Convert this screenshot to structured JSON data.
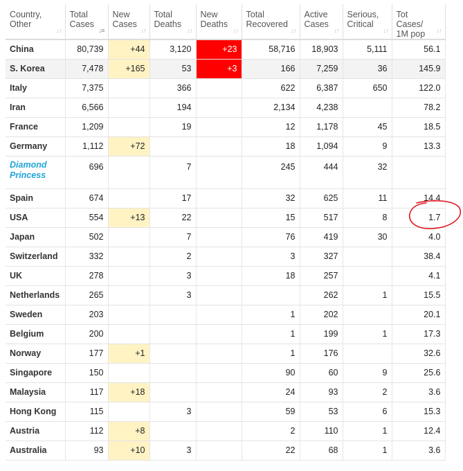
{
  "table": {
    "columns": [
      {
        "label": "Country,\nOther",
        "sort_active": false
      },
      {
        "label": "Total\nCases",
        "sort_active": true
      },
      {
        "label": "New\nCases",
        "sort_active": false
      },
      {
        "label": "Total\nDeaths",
        "sort_active": false
      },
      {
        "label": "New\nDeaths",
        "sort_active": false
      },
      {
        "label": "Total\nRecovered",
        "sort_active": false
      },
      {
        "label": "Active\nCases",
        "sort_active": false
      },
      {
        "label": "Serious,\nCritical",
        "sort_active": false
      },
      {
        "label": "Tot Cases/\n1M pop",
        "sort_active": false
      }
    ],
    "sort_icon": "sort-arrows-icon",
    "rows": [
      {
        "country": "China",
        "total_cases": "80,739",
        "new_cases": "+44",
        "total_deaths": "3,120",
        "new_deaths": "+23",
        "total_recovered": "58,716",
        "active_cases": "18,903",
        "serious": "5,111",
        "per_million": "56.1",
        "link": false,
        "highlight": false
      },
      {
        "country": "S. Korea",
        "total_cases": "7,478",
        "new_cases": "+165",
        "total_deaths": "53",
        "new_deaths": "+3",
        "total_recovered": "166",
        "active_cases": "7,259",
        "serious": "36",
        "per_million": "145.9",
        "link": false,
        "highlight": true
      },
      {
        "country": "Italy",
        "total_cases": "7,375",
        "new_cases": "",
        "total_deaths": "366",
        "new_deaths": "",
        "total_recovered": "622",
        "active_cases": "6,387",
        "serious": "650",
        "per_million": "122.0",
        "link": false,
        "highlight": false
      },
      {
        "country": "Iran",
        "total_cases": "6,566",
        "new_cases": "",
        "total_deaths": "194",
        "new_deaths": "",
        "total_recovered": "2,134",
        "active_cases": "4,238",
        "serious": "",
        "per_million": "78.2",
        "link": false,
        "highlight": false
      },
      {
        "country": "France",
        "total_cases": "1,209",
        "new_cases": "",
        "total_deaths": "19",
        "new_deaths": "",
        "total_recovered": "12",
        "active_cases": "1,178",
        "serious": "45",
        "per_million": "18.5",
        "link": false,
        "highlight": false
      },
      {
        "country": "Germany",
        "total_cases": "1,112",
        "new_cases": "+72",
        "total_deaths": "",
        "new_deaths": "",
        "total_recovered": "18",
        "active_cases": "1,094",
        "serious": "9",
        "per_million": "13.3",
        "link": false,
        "highlight": false
      },
      {
        "country": "Diamond Princess",
        "total_cases": "696",
        "new_cases": "",
        "total_deaths": "7",
        "new_deaths": "",
        "total_recovered": "245",
        "active_cases": "444",
        "serious": "32",
        "per_million": "",
        "link": true,
        "highlight": false
      },
      {
        "country": "Spain",
        "total_cases": "674",
        "new_cases": "",
        "total_deaths": "17",
        "new_deaths": "",
        "total_recovered": "32",
        "active_cases": "625",
        "serious": "11",
        "per_million": "14.4",
        "link": false,
        "highlight": false
      },
      {
        "country": "USA",
        "total_cases": "554",
        "new_cases": "+13",
        "total_deaths": "22",
        "new_deaths": "",
        "total_recovered": "15",
        "active_cases": "517",
        "serious": "8",
        "per_million": "1.7",
        "link": false,
        "highlight": false
      },
      {
        "country": "Japan",
        "total_cases": "502",
        "new_cases": "",
        "total_deaths": "7",
        "new_deaths": "",
        "total_recovered": "76",
        "active_cases": "419",
        "serious": "30",
        "per_million": "4.0",
        "link": false,
        "highlight": false
      },
      {
        "country": "Switzerland",
        "total_cases": "332",
        "new_cases": "",
        "total_deaths": "2",
        "new_deaths": "",
        "total_recovered": "3",
        "active_cases": "327",
        "serious": "",
        "per_million": "38.4",
        "link": false,
        "highlight": false
      },
      {
        "country": "UK",
        "total_cases": "278",
        "new_cases": "",
        "total_deaths": "3",
        "new_deaths": "",
        "total_recovered": "18",
        "active_cases": "257",
        "serious": "",
        "per_million": "4.1",
        "link": false,
        "highlight": false
      },
      {
        "country": "Netherlands",
        "total_cases": "265",
        "new_cases": "",
        "total_deaths": "3",
        "new_deaths": "",
        "total_recovered": "",
        "active_cases": "262",
        "serious": "1",
        "per_million": "15.5",
        "link": false,
        "highlight": false
      },
      {
        "country": "Sweden",
        "total_cases": "203",
        "new_cases": "",
        "total_deaths": "",
        "new_deaths": "",
        "total_recovered": "1",
        "active_cases": "202",
        "serious": "",
        "per_million": "20.1",
        "link": false,
        "highlight": false
      },
      {
        "country": "Belgium",
        "total_cases": "200",
        "new_cases": "",
        "total_deaths": "",
        "new_deaths": "",
        "total_recovered": "1",
        "active_cases": "199",
        "serious": "1",
        "per_million": "17.3",
        "link": false,
        "highlight": false
      },
      {
        "country": "Norway",
        "total_cases": "177",
        "new_cases": "+1",
        "total_deaths": "",
        "new_deaths": "",
        "total_recovered": "1",
        "active_cases": "176",
        "serious": "",
        "per_million": "32.6",
        "link": false,
        "highlight": false
      },
      {
        "country": "Singapore",
        "total_cases": "150",
        "new_cases": "",
        "total_deaths": "",
        "new_deaths": "",
        "total_recovered": "90",
        "active_cases": "60",
        "serious": "9",
        "per_million": "25.6",
        "link": false,
        "highlight": false
      },
      {
        "country": "Malaysia",
        "total_cases": "117",
        "new_cases": "+18",
        "total_deaths": "",
        "new_deaths": "",
        "total_recovered": "24",
        "active_cases": "93",
        "serious": "2",
        "per_million": "3.6",
        "link": false,
        "highlight": false
      },
      {
        "country": "Hong Kong",
        "total_cases": "115",
        "new_cases": "",
        "total_deaths": "3",
        "new_deaths": "",
        "total_recovered": "59",
        "active_cases": "53",
        "serious": "6",
        "per_million": "15.3",
        "link": false,
        "highlight": false
      },
      {
        "country": "Austria",
        "total_cases": "112",
        "new_cases": "+8",
        "total_deaths": "",
        "new_deaths": "",
        "total_recovered": "2",
        "active_cases": "110",
        "serious": "1",
        "per_million": "12.4",
        "link": false,
        "highlight": false
      },
      {
        "country": "Australia",
        "total_cases": "93",
        "new_cases": "+10",
        "total_deaths": "3",
        "new_deaths": "",
        "total_recovered": "22",
        "active_cases": "68",
        "serious": "1",
        "per_million": "3.6",
        "link": false,
        "highlight": false
      }
    ]
  },
  "colors": {
    "new_cases_bg": "#fff3c4",
    "new_deaths_bg": "#ff0000",
    "link_text": "#1ea5d7",
    "annotation_stroke": "#e0141e"
  },
  "annotation": {
    "type": "hand-drawn circle",
    "target": "USA per-million value"
  }
}
